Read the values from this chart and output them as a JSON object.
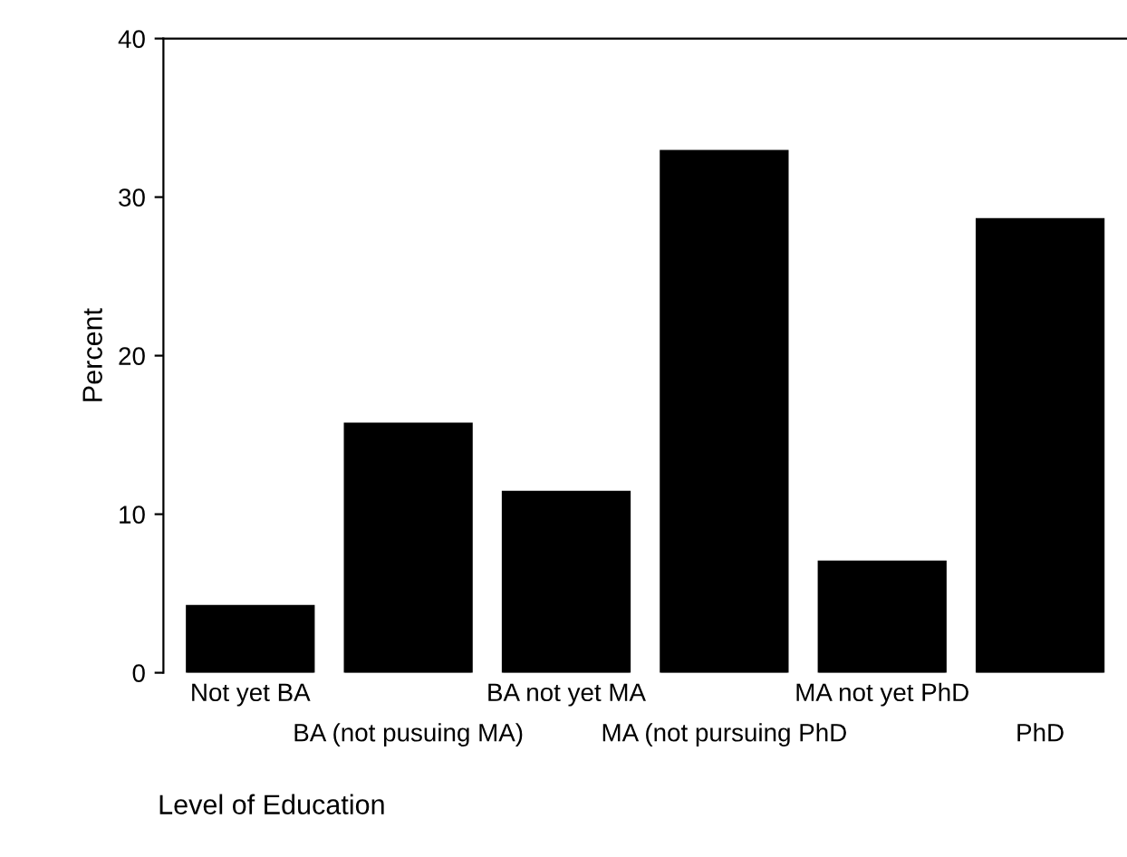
{
  "chart_data": {
    "type": "bar",
    "xlabel": "Level of Education",
    "ylabel": "Percent",
    "categories": [
      "Not yet BA",
      "BA (not pusuing MA)",
      "BA not yet MA",
      "MA (not pursuing PhD",
      "MA not yet PhD",
      "PhD"
    ],
    "values": [
      4.2,
      15.7,
      11.4,
      32.9,
      7.0,
      28.6
    ],
    "color": "#000000",
    "ylim": [
      0,
      40
    ],
    "yticks": [
      0,
      10,
      20,
      30,
      40
    ],
    "grid": false
  }
}
